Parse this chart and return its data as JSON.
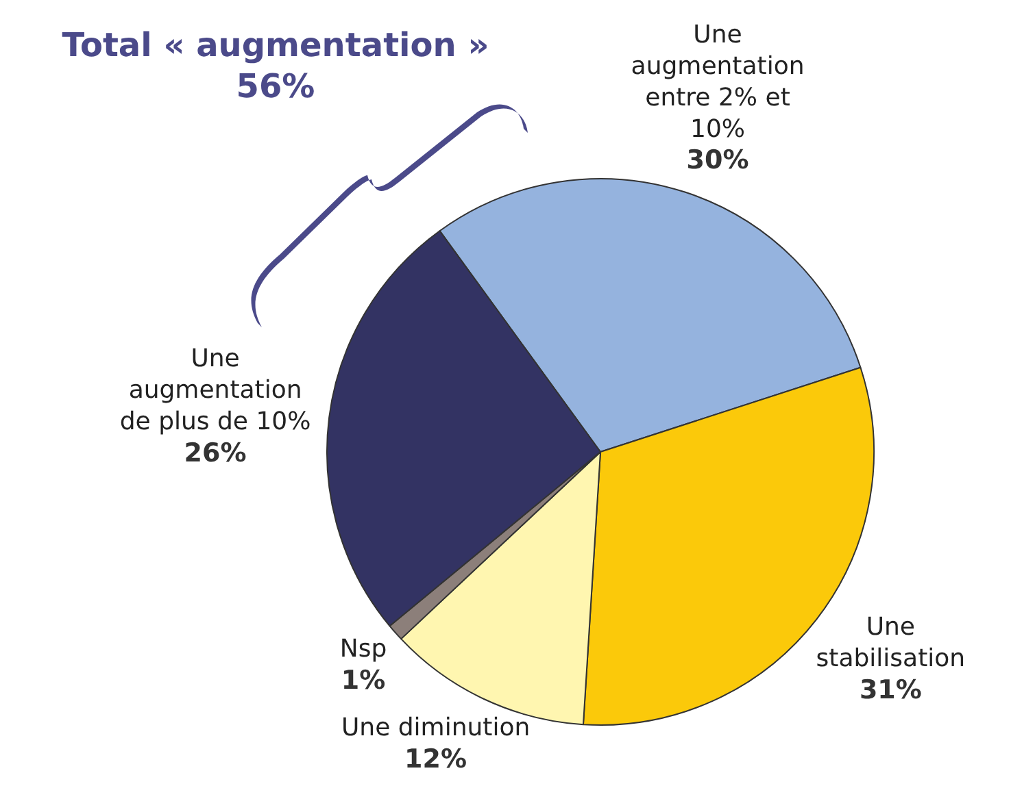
{
  "chart_data": {
    "type": "pie",
    "title": "Total « augmentation »",
    "subtitle": "56%",
    "categories": [
      "Une augmentation entre 2% et 10%",
      "Une stabilisation",
      "Une diminution",
      "Nsp",
      "Une augmentation de plus de 10%"
    ],
    "values": [
      30,
      31,
      12,
      1,
      26
    ],
    "value_labels": [
      "30%",
      "31%",
      "12%",
      "1%",
      "26%"
    ],
    "colors": [
      "#95b3de",
      "#fbc90a",
      "#fff6b0",
      "#8c7f7a",
      "#333363"
    ],
    "legend": false
  }
}
